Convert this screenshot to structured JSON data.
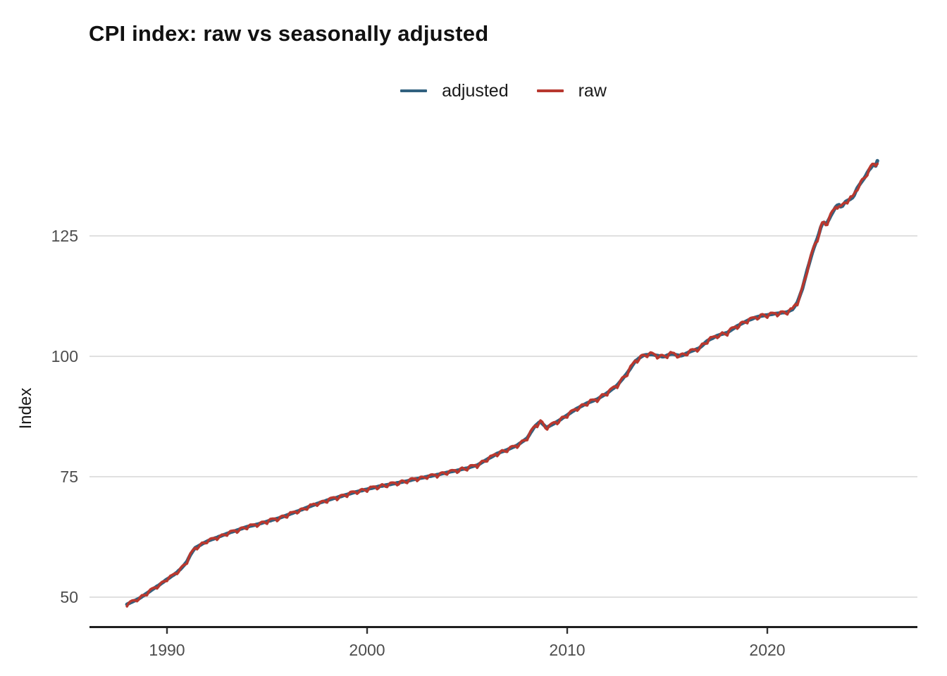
{
  "title": "CPI index: raw vs seasonally adjusted",
  "legend": {
    "items": [
      {
        "label": "adjusted",
        "color": "#31617f"
      },
      {
        "label": "raw",
        "color": "#b8382f"
      }
    ],
    "position": "top-center"
  },
  "chart_data": {
    "type": "line",
    "title": "CPI index: raw vs seasonally adjusted",
    "xlabel": "",
    "ylabel": "Index",
    "x_ticks": [
      1990,
      2000,
      2010,
      2020
    ],
    "y_ticks": [
      50,
      75,
      100,
      125
    ],
    "xlim": [
      1986.1,
      2027.5
    ],
    "ylim": [
      43.7,
      149.9
    ],
    "grid": "horizontal-only",
    "legend_position": "top-center",
    "x_start": 1988.0,
    "x_end": 2025.5,
    "sampling": "monthly",
    "series": [
      {
        "name": "adjusted",
        "color": "#31617f",
        "anchors": [
          [
            1988.0,
            48.5
          ],
          [
            1988.3,
            49.1
          ],
          [
            1988.6,
            49.7
          ],
          [
            1989.0,
            50.8
          ],
          [
            1989.3,
            51.7
          ],
          [
            1989.6,
            52.5
          ],
          [
            1990.0,
            53.7
          ],
          [
            1990.4,
            54.8
          ],
          [
            1990.7,
            55.9
          ],
          [
            1991.0,
            57.4
          ],
          [
            1991.2,
            59.0
          ],
          [
            1991.4,
            60.2
          ],
          [
            1991.7,
            60.9
          ],
          [
            1992.0,
            61.6
          ],
          [
            1992.5,
            62.4
          ],
          [
            1993.0,
            63.2
          ],
          [
            1993.5,
            63.9
          ],
          [
            1994.0,
            64.6
          ],
          [
            1994.5,
            65.1
          ],
          [
            1995.0,
            65.7
          ],
          [
            1995.5,
            66.3
          ],
          [
            1996.0,
            67.0
          ],
          [
            1996.5,
            67.8
          ],
          [
            1997.0,
            68.6
          ],
          [
            1997.5,
            69.4
          ],
          [
            1998.0,
            70.1
          ],
          [
            1998.5,
            70.7
          ],
          [
            1999.0,
            71.3
          ],
          [
            1999.5,
            71.9
          ],
          [
            2000.0,
            72.4
          ],
          [
            2000.5,
            72.9
          ],
          [
            2001.0,
            73.3
          ],
          [
            2001.5,
            73.7
          ],
          [
            2002.0,
            74.1
          ],
          [
            2002.5,
            74.6
          ],
          [
            2003.0,
            75.0
          ],
          [
            2003.5,
            75.4
          ],
          [
            2004.0,
            75.9
          ],
          [
            2004.5,
            76.3
          ],
          [
            2005.0,
            76.8
          ],
          [
            2005.5,
            77.4
          ],
          [
            2006.0,
            78.6
          ],
          [
            2006.5,
            79.8
          ],
          [
            2007.0,
            80.6
          ],
          [
            2007.5,
            81.5
          ],
          [
            2008.0,
            83.0
          ],
          [
            2008.35,
            85.3
          ],
          [
            2008.65,
            86.5
          ],
          [
            2008.95,
            85.2
          ],
          [
            2009.2,
            85.7
          ],
          [
            2009.6,
            86.7
          ],
          [
            2010.0,
            87.8
          ],
          [
            2010.5,
            89.2
          ],
          [
            2011.0,
            90.3
          ],
          [
            2011.5,
            91.1
          ],
          [
            2012.0,
            92.4
          ],
          [
            2012.5,
            94.0
          ],
          [
            2013.0,
            96.5
          ],
          [
            2013.4,
            99.0
          ],
          [
            2013.8,
            100.2
          ],
          [
            2014.2,
            100.4
          ],
          [
            2014.8,
            99.9
          ],
          [
            2015.2,
            100.5
          ],
          [
            2015.7,
            100.1
          ],
          [
            2016.1,
            100.9
          ],
          [
            2016.6,
            101.7
          ],
          [
            2017.0,
            103.2
          ],
          [
            2017.5,
            104.3
          ],
          [
            2018.0,
            104.9
          ],
          [
            2018.5,
            106.3
          ],
          [
            2019.0,
            107.4
          ],
          [
            2019.5,
            108.2
          ],
          [
            2020.0,
            108.6
          ],
          [
            2020.5,
            108.9
          ],
          [
            2021.0,
            109.2
          ],
          [
            2021.25,
            109.7
          ],
          [
            2021.5,
            111.2
          ],
          [
            2021.75,
            114.0
          ],
          [
            2022.0,
            118.0
          ],
          [
            2022.3,
            122.3
          ],
          [
            2022.55,
            125.0
          ],
          [
            2022.7,
            127.2
          ],
          [
            2022.8,
            127.9
          ],
          [
            2022.95,
            127.4
          ],
          [
            2023.2,
            129.4
          ],
          [
            2023.4,
            130.9
          ],
          [
            2023.55,
            131.6
          ],
          [
            2023.7,
            130.9
          ],
          [
            2023.9,
            132.1
          ],
          [
            2024.1,
            132.5
          ],
          [
            2024.3,
            133.1
          ],
          [
            2024.5,
            135.0
          ],
          [
            2024.7,
            136.2
          ],
          [
            2024.9,
            137.3
          ],
          [
            2025.05,
            138.6
          ],
          [
            2025.2,
            139.2
          ],
          [
            2025.3,
            139.9
          ],
          [
            2025.4,
            139.3
          ],
          [
            2025.5,
            140.6
          ]
        ]
      },
      {
        "name": "raw",
        "color": "#b8382f",
        "derived_from": "adjusted",
        "seasonal_monthly_offsets": [
          -0.5,
          0.1,
          0.35,
          0.3,
          0.2,
          0.05,
          -0.55,
          -0.3,
          0.2,
          0.3,
          0.1,
          -0.25
        ],
        "seasonal_scale": {
          "base": 0.5,
          "per_index_unit": 0.005
        },
        "noise_amplitude": 0.08
      }
    ]
  }
}
